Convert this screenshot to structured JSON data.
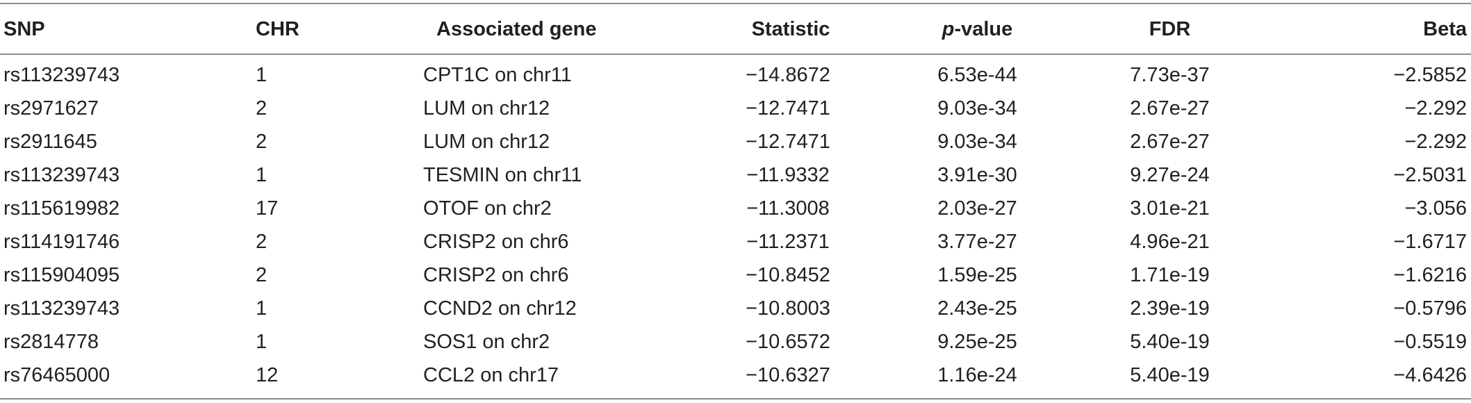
{
  "table": {
    "headers": {
      "snp": "SNP",
      "chr": "CHR",
      "gene": "Associated gene",
      "statistic": "Statistic",
      "p_italic": "p",
      "p_rest": "-value",
      "fdr": "FDR",
      "beta": "Beta"
    },
    "rows": [
      {
        "snp": "rs113239743",
        "chr": "1",
        "gene": "CPT1C on chr11",
        "statistic": "−14.8672",
        "p": "6.53e-44",
        "fdr": "7.73e-37",
        "beta": "−2.5852"
      },
      {
        "snp": "rs2971627",
        "chr": "2",
        "gene": "LUM on chr12",
        "statistic": "−12.7471",
        "p": "9.03e-34",
        "fdr": "2.67e-27",
        "beta": "−2.292"
      },
      {
        "snp": "rs2911645",
        "chr": "2",
        "gene": "LUM on chr12",
        "statistic": "−12.7471",
        "p": "9.03e-34",
        "fdr": "2.67e-27",
        "beta": "−2.292"
      },
      {
        "snp": "rs113239743",
        "chr": "1",
        "gene": "TESMIN on chr11",
        "statistic": "−11.9332",
        "p": "3.91e-30",
        "fdr": "9.27e-24",
        "beta": "−2.5031"
      },
      {
        "snp": "rs115619982",
        "chr": "17",
        "gene": "OTOF on chr2",
        "statistic": "−11.3008",
        "p": "2.03e-27",
        "fdr": "3.01e-21",
        "beta": "−3.056"
      },
      {
        "snp": "rs114191746",
        "chr": "2",
        "gene": "CRISP2 on chr6",
        "statistic": "−11.2371",
        "p": "3.77e-27",
        "fdr": "4.96e-21",
        "beta": "−1.6717"
      },
      {
        "snp": "rs115904095",
        "chr": "2",
        "gene": "CRISP2 on chr6",
        "statistic": "−10.8452",
        "p": "1.59e-25",
        "fdr": "1.71e-19",
        "beta": "−1.6216"
      },
      {
        "snp": "rs113239743",
        "chr": "1",
        "gene": "CCND2 on chr12",
        "statistic": "−10.8003",
        "p": "2.43e-25",
        "fdr": "2.39e-19",
        "beta": "−0.5796"
      },
      {
        "snp": "rs2814778",
        "chr": "1",
        "gene": "SOS1 on chr2",
        "statistic": "−10.6572",
        "p": "9.25e-25",
        "fdr": "5.40e-19",
        "beta": "−0.5519"
      },
      {
        "snp": "rs76465000",
        "chr": "12",
        "gene": "CCL2 on chr17",
        "statistic": "−10.6327",
        "p": "1.16e-24",
        "fdr": "5.40e-19",
        "beta": "−4.6426"
      }
    ]
  }
}
